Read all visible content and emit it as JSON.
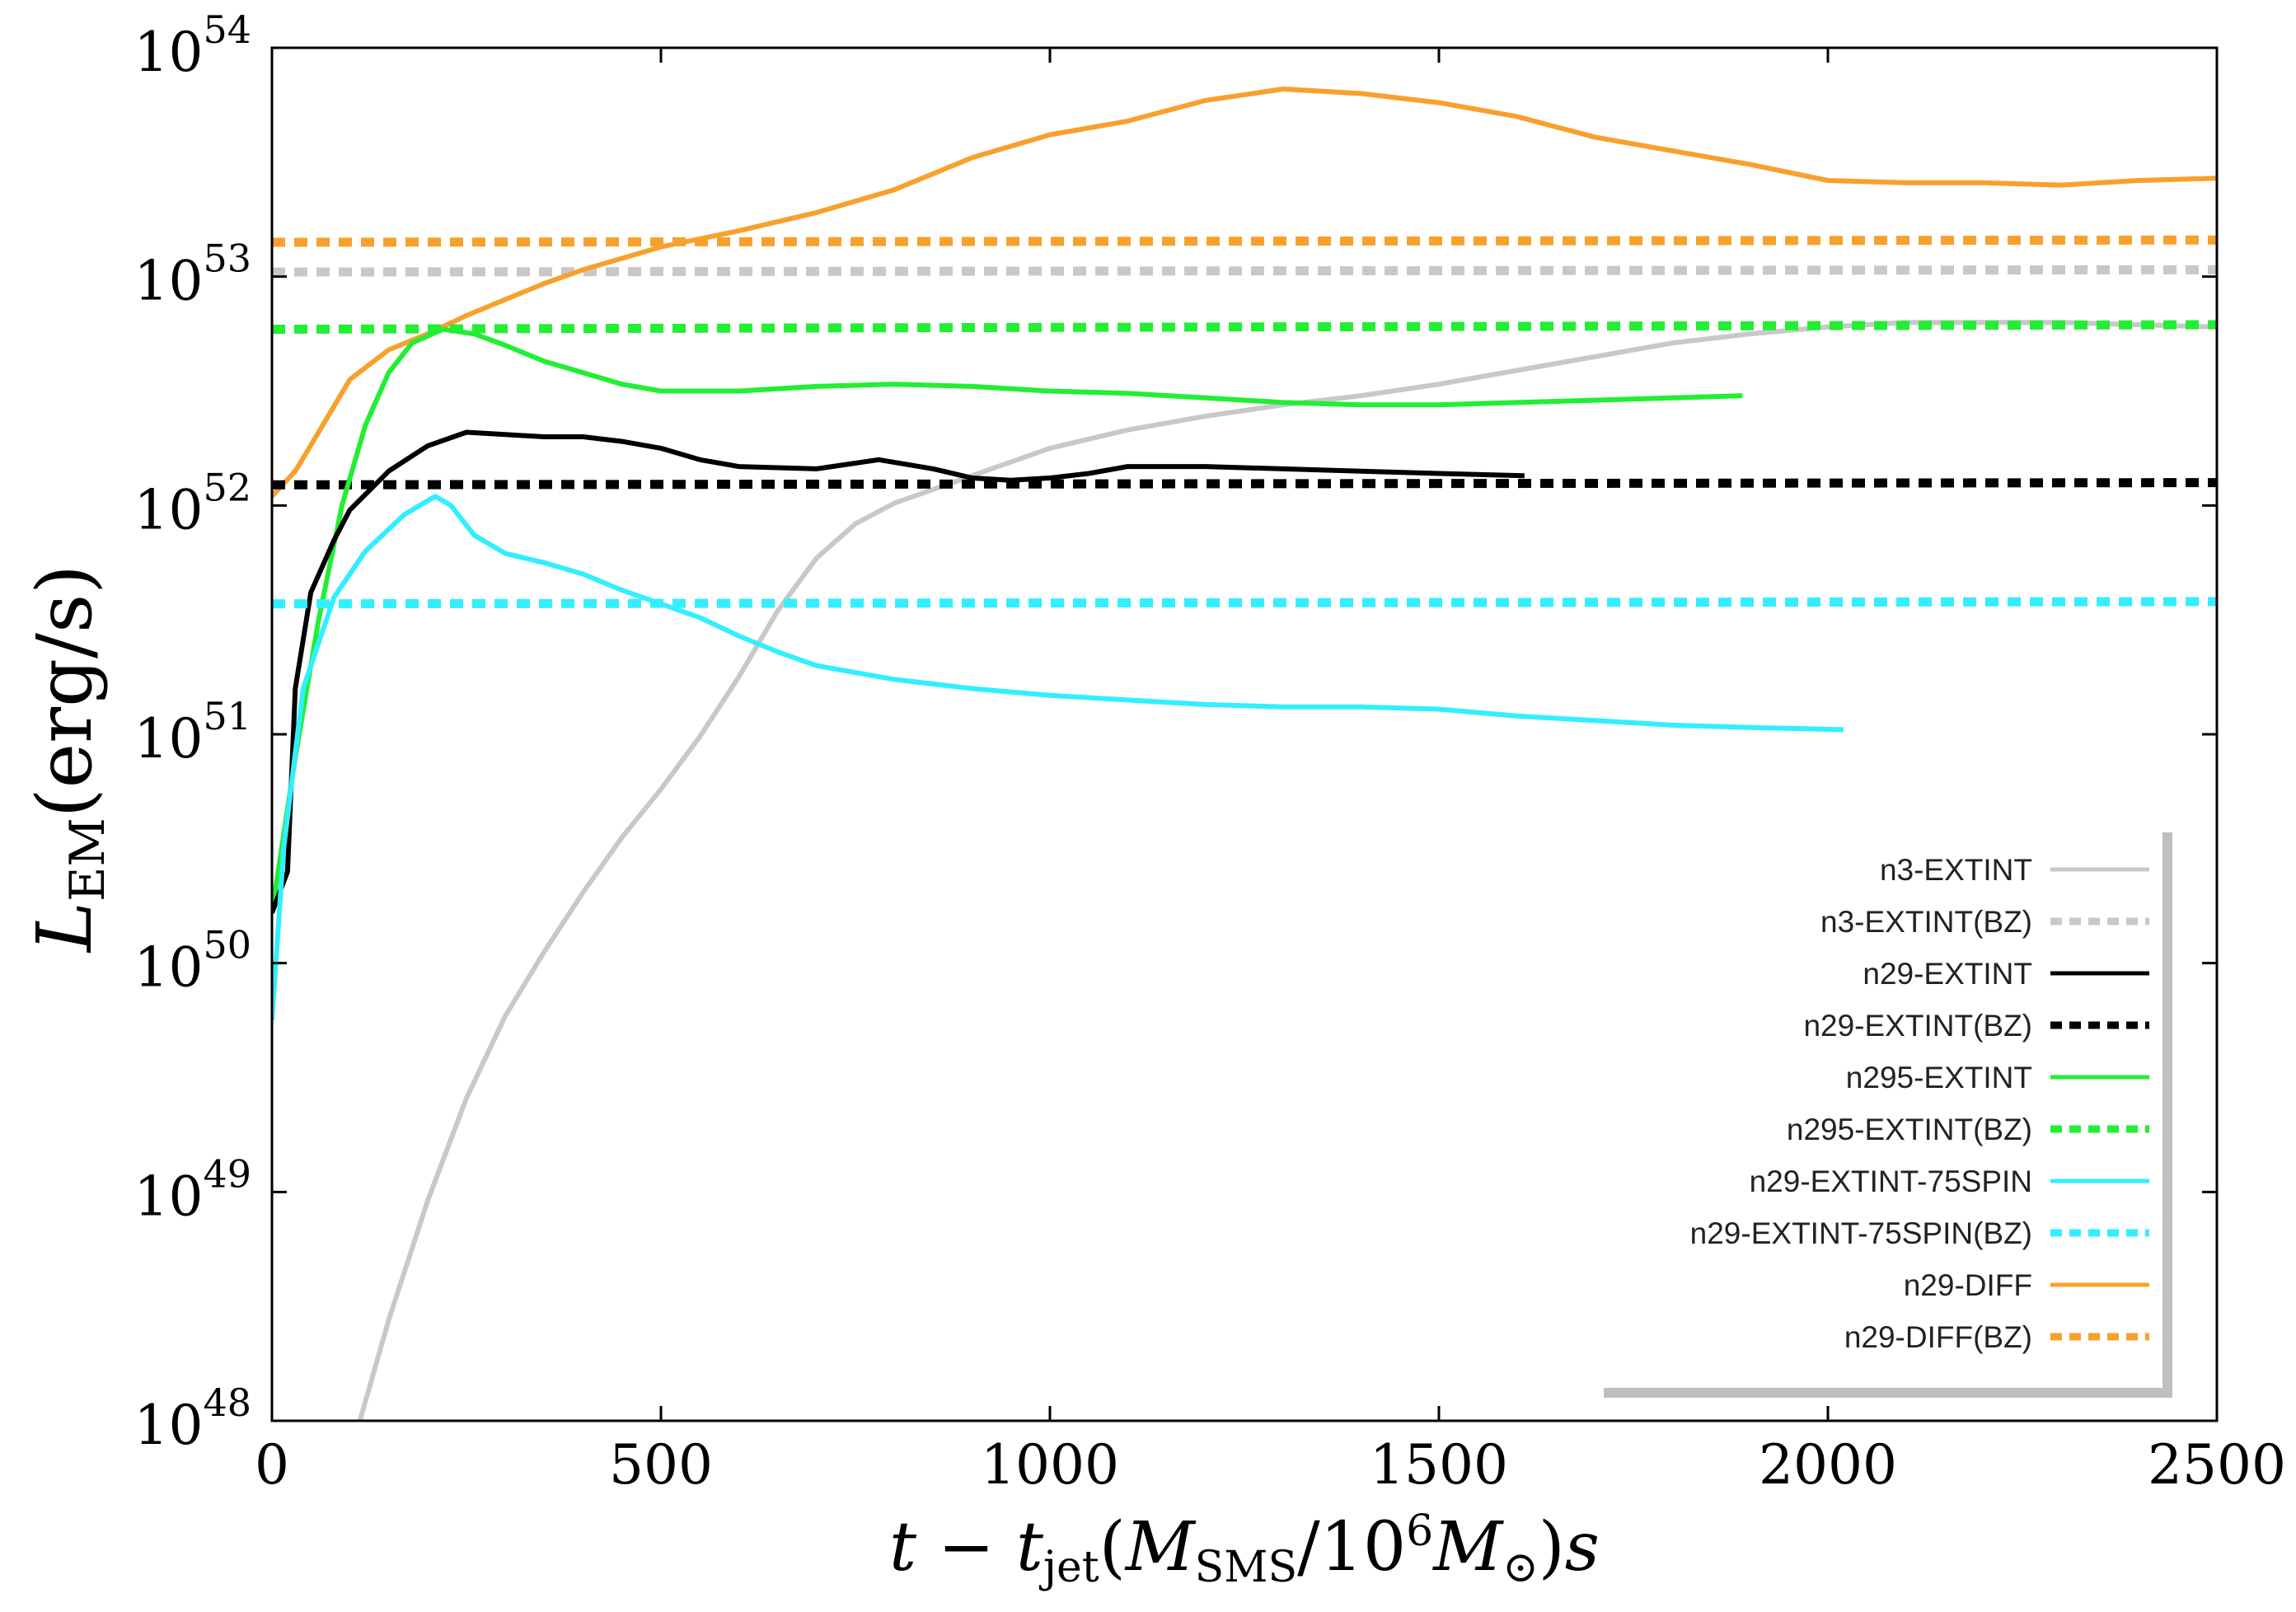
{
  "chart_data": {
    "type": "line",
    "xlim": [
      0,
      2500
    ],
    "ylim_log10": [
      48,
      54
    ],
    "yscale": "log",
    "x_ticks": [
      0,
      500,
      1000,
      1500,
      2000,
      2500
    ],
    "x_tick_labels": [
      "0",
      "500",
      "1000",
      "1500",
      "2000",
      "2500"
    ],
    "y_ticks_exp": [
      48,
      49,
      50,
      51,
      52,
      53,
      54
    ],
    "y_tick_base": "10",
    "y_tick_exps": [
      "48",
      "49",
      "50",
      "51",
      "52",
      "53",
      "54"
    ],
    "xlabel": {
      "t": "t",
      "minus": " − ",
      "tjet_t": "t",
      "tjet_sub": "jet",
      "paren_open": "(",
      "M": "M",
      "M_sub": "SMS",
      "slash": "/10",
      "sup6": "6",
      "Msun": "M",
      "sun_sub": "⊙",
      "paren_close": ")",
      "s": "s"
    },
    "ylabel": {
      "L": "L",
      "sub": "EM",
      "units": "(erg/s)"
    },
    "legend_position": "bottom-right",
    "series": [
      {
        "name": "n3-EXTINT",
        "style": "solid",
        "color": "#c8c8c8",
        "points": [
          [
            113,
            48.0
          ],
          [
            150,
            48.44
          ],
          [
            200,
            48.96
          ],
          [
            250,
            49.41
          ],
          [
            300,
            49.77
          ],
          [
            350,
            50.05
          ],
          [
            400,
            50.31
          ],
          [
            450,
            50.55
          ],
          [
            500,
            50.76
          ],
          [
            550,
            50.99
          ],
          [
            600,
            51.25
          ],
          [
            650,
            51.54
          ],
          [
            700,
            51.77
          ],
          [
            750,
            51.92
          ],
          [
            800,
            52.01
          ],
          [
            900,
            52.13
          ],
          [
            1000,
            52.25
          ],
          [
            1100,
            52.33
          ],
          [
            1200,
            52.39
          ],
          [
            1300,
            52.44
          ],
          [
            1400,
            52.48
          ],
          [
            1500,
            52.53
          ],
          [
            1600,
            52.59
          ],
          [
            1700,
            52.65
          ],
          [
            1800,
            52.71
          ],
          [
            1900,
            52.75
          ],
          [
            2000,
            52.78
          ],
          [
            2100,
            52.8
          ],
          [
            2200,
            52.8
          ],
          [
            2300,
            52.8
          ],
          [
            2400,
            52.79
          ],
          [
            2500,
            52.78
          ]
        ]
      },
      {
        "name": "n3-EXTINT(BZ)",
        "style": "dashed",
        "color": "#c8c8c8",
        "points": [
          [
            0,
            53.02
          ],
          [
            2500,
            53.03
          ]
        ]
      },
      {
        "name": "n29-EXTINT",
        "style": "solid",
        "color": "#000000",
        "points": [
          [
            0,
            50.22
          ],
          [
            20,
            50.4
          ],
          [
            30,
            51.2
          ],
          [
            50,
            51.62
          ],
          [
            80,
            51.85
          ],
          [
            100,
            51.98
          ],
          [
            150,
            52.15
          ],
          [
            200,
            52.26
          ],
          [
            250,
            52.32
          ],
          [
            300,
            52.31
          ],
          [
            350,
            52.3
          ],
          [
            400,
            52.3
          ],
          [
            450,
            52.28
          ],
          [
            500,
            52.25
          ],
          [
            550,
            52.2
          ],
          [
            600,
            52.17
          ],
          [
            700,
            52.16
          ],
          [
            780,
            52.2
          ],
          [
            850,
            52.16
          ],
          [
            900,
            52.12
          ],
          [
            950,
            52.11
          ],
          [
            1000,
            52.12
          ],
          [
            1050,
            52.14
          ],
          [
            1100,
            52.17
          ],
          [
            1200,
            52.17
          ],
          [
            1300,
            52.16
          ],
          [
            1400,
            52.15
          ],
          [
            1500,
            52.14
          ],
          [
            1610,
            52.13
          ]
        ]
      },
      {
        "name": "n29-EXTINT(BZ)",
        "style": "dashed",
        "color": "#000000",
        "points": [
          [
            0,
            52.09
          ],
          [
            2500,
            52.1
          ]
        ]
      },
      {
        "name": "n295-EXTINT",
        "style": "solid",
        "color": "#22ee33",
        "points": [
          [
            0,
            50.22
          ],
          [
            30,
            50.9
          ],
          [
            60,
            51.5
          ],
          [
            90,
            52.0
          ],
          [
            120,
            52.35
          ],
          [
            150,
            52.58
          ],
          [
            180,
            52.71
          ],
          [
            220,
            52.77
          ],
          [
            260,
            52.75
          ],
          [
            300,
            52.7
          ],
          [
            350,
            52.63
          ],
          [
            400,
            52.58
          ],
          [
            450,
            52.53
          ],
          [
            500,
            52.5
          ],
          [
            600,
            52.5
          ],
          [
            700,
            52.52
          ],
          [
            800,
            52.53
          ],
          [
            900,
            52.52
          ],
          [
            1000,
            52.5
          ],
          [
            1100,
            52.49
          ],
          [
            1200,
            52.47
          ],
          [
            1300,
            52.45
          ],
          [
            1400,
            52.44
          ],
          [
            1500,
            52.44
          ],
          [
            1600,
            52.45
          ],
          [
            1700,
            52.46
          ],
          [
            1800,
            52.47
          ],
          [
            1890,
            52.48
          ]
        ]
      },
      {
        "name": "n295-EXTINT(BZ)",
        "style": "dashed",
        "color": "#22ee33",
        "points": [
          [
            0,
            52.77
          ],
          [
            2500,
            52.79
          ]
        ]
      },
      {
        "name": "n29-EXTINT-75SPIN",
        "style": "solid",
        "color": "#33eeff",
        "points": [
          [
            0,
            49.75
          ],
          [
            15,
            50.5
          ],
          [
            40,
            51.2
          ],
          [
            80,
            51.6
          ],
          [
            120,
            51.8
          ],
          [
            170,
            51.96
          ],
          [
            210,
            52.04
          ],
          [
            230,
            52.0
          ],
          [
            260,
            51.87
          ],
          [
            300,
            51.79
          ],
          [
            350,
            51.75
          ],
          [
            400,
            51.7
          ],
          [
            450,
            51.63
          ],
          [
            500,
            51.57
          ],
          [
            550,
            51.51
          ],
          [
            600,
            51.43
          ],
          [
            650,
            51.36
          ],
          [
            700,
            51.3
          ],
          [
            800,
            51.24
          ],
          [
            900,
            51.2
          ],
          [
            1000,
            51.17
          ],
          [
            1100,
            51.15
          ],
          [
            1200,
            51.13
          ],
          [
            1300,
            51.12
          ],
          [
            1400,
            51.12
          ],
          [
            1500,
            51.11
          ],
          [
            1600,
            51.08
          ],
          [
            1700,
            51.06
          ],
          [
            1800,
            51.04
          ],
          [
            1900,
            51.03
          ],
          [
            2020,
            51.02
          ]
        ]
      },
      {
        "name": "n29-EXTINT-75SPIN(BZ)",
        "style": "dashed",
        "color": "#33eeff",
        "points": [
          [
            0,
            51.57
          ],
          [
            2500,
            51.58
          ]
        ]
      },
      {
        "name": "n29-DIFF",
        "style": "solid",
        "color": "#f7a12c",
        "points": [
          [
            0,
            52.04
          ],
          [
            30,
            52.15
          ],
          [
            60,
            52.32
          ],
          [
            100,
            52.55
          ],
          [
            150,
            52.68
          ],
          [
            200,
            52.75
          ],
          [
            250,
            52.83
          ],
          [
            300,
            52.9
          ],
          [
            350,
            52.97
          ],
          [
            400,
            53.03
          ],
          [
            450,
            53.08
          ],
          [
            500,
            53.13
          ],
          [
            600,
            53.2
          ],
          [
            700,
            53.28
          ],
          [
            800,
            53.38
          ],
          [
            900,
            53.52
          ],
          [
            1000,
            53.62
          ],
          [
            1100,
            53.68
          ],
          [
            1200,
            53.77
          ],
          [
            1300,
            53.82
          ],
          [
            1400,
            53.8
          ],
          [
            1500,
            53.76
          ],
          [
            1600,
            53.7
          ],
          [
            1700,
            53.61
          ],
          [
            1800,
            53.55
          ],
          [
            1900,
            53.49
          ],
          [
            2000,
            53.42
          ],
          [
            2100,
            53.41
          ],
          [
            2200,
            53.41
          ],
          [
            2300,
            53.4
          ],
          [
            2400,
            53.42
          ],
          [
            2500,
            53.43
          ]
        ]
      },
      {
        "name": "n29-DIFF(BZ)",
        "style": "dashed",
        "color": "#f7a12c",
        "points": [
          [
            0,
            53.15
          ],
          [
            2500,
            53.16
          ]
        ]
      }
    ]
  }
}
